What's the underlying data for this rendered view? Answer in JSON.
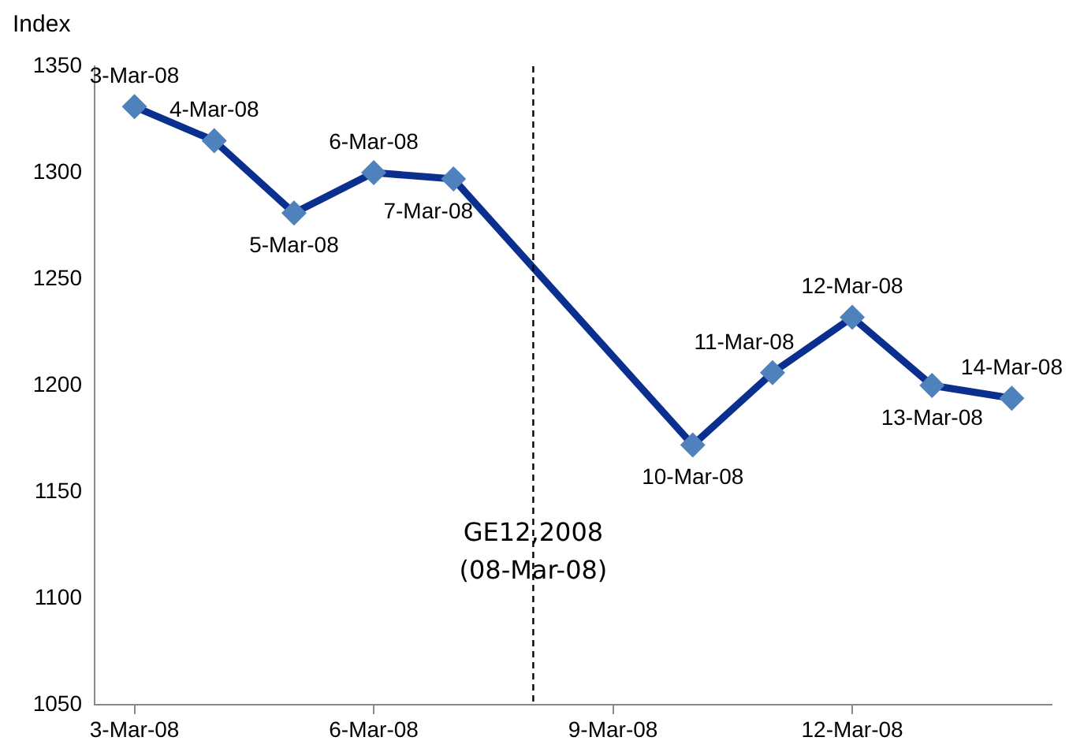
{
  "chart_data": {
    "type": "line",
    "ylabel": "Index",
    "x": [
      "2008-03-03",
      "2008-03-04",
      "2008-03-05",
      "2008-03-06",
      "2008-03-07",
      "2008-03-10",
      "2008-03-11",
      "2008-03-12",
      "2008-03-13",
      "2008-03-14"
    ],
    "series": [
      {
        "color": "#0b2f8f",
        "colors": [
          "#4f81bd",
          "#4f81bd",
          "#4f81bd",
          "#4f81bd",
          "#4f81bd",
          "#4f81bd",
          "#4f81bd",
          "#4f81bd",
          "#4f81bd",
          "#4f81bd"
        ],
        "values": [
          1331,
          1315,
          1281,
          1300,
          1297,
          1172,
          1206,
          1232,
          1200,
          1194
        ],
        "value_labels": [
          "3-Mar-08",
          "4-Mar-08",
          "5-Mar-08",
          "6-Mar-08",
          "7-Mar-08",
          "10-Mar-08",
          "11-Mar-08",
          "12-Mar-08",
          "13-Mar-08",
          "14-Mar-08"
        ]
      }
    ],
    "marker": "diamond",
    "xlim": [
      "2008-03-02T12:00",
      "2008-03-14T12:00"
    ],
    "xticks": [
      {
        "value": "2008-03-03",
        "label": "3-Mar-08"
      },
      {
        "value": "2008-03-06",
        "label": "6-Mar-08"
      },
      {
        "value": "2008-03-09",
        "label": "9-Mar-08"
      },
      {
        "value": "2008-03-12",
        "label": "12-Mar-08"
      }
    ],
    "ylim": [
      1050,
      1350
    ],
    "yticks": [
      1050,
      1100,
      1150,
      1200,
      1250,
      1300,
      1350
    ],
    "ref_lines": [
      {
        "axis": "x",
        "value": "2008-03-08",
        "label": "GE12,2008 (08-Mar-08)",
        "color": "#000000",
        "line_style": "dashed"
      }
    ],
    "grid": false,
    "legend": false
  }
}
